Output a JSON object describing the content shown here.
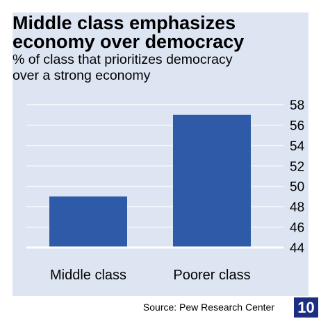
{
  "title": "Middle class emphasizes\neconomy over democracy",
  "subtitle": "% of class that prioritizes democracy\nover a strong economy",
  "source": "Source: Pew Research Center",
  "page_number": "10",
  "colors": {
    "background": "#dde5f3",
    "bar": "#2e5aa8",
    "gridline": "#ffffff",
    "page_box": "#1b2e82"
  },
  "chart_data": {
    "type": "bar",
    "categories": [
      "Middle class",
      "Poorer class"
    ],
    "values": [
      49,
      57
    ],
    "title": "Middle class emphasizes economy over democracy",
    "subtitle": "% of class that prioritizes democracy over a strong economy",
    "ylim": [
      44,
      58
    ],
    "yticks": [
      44,
      46,
      48,
      50,
      52,
      54,
      56,
      58
    ],
    "y_axis_side": "right",
    "grid": true
  }
}
